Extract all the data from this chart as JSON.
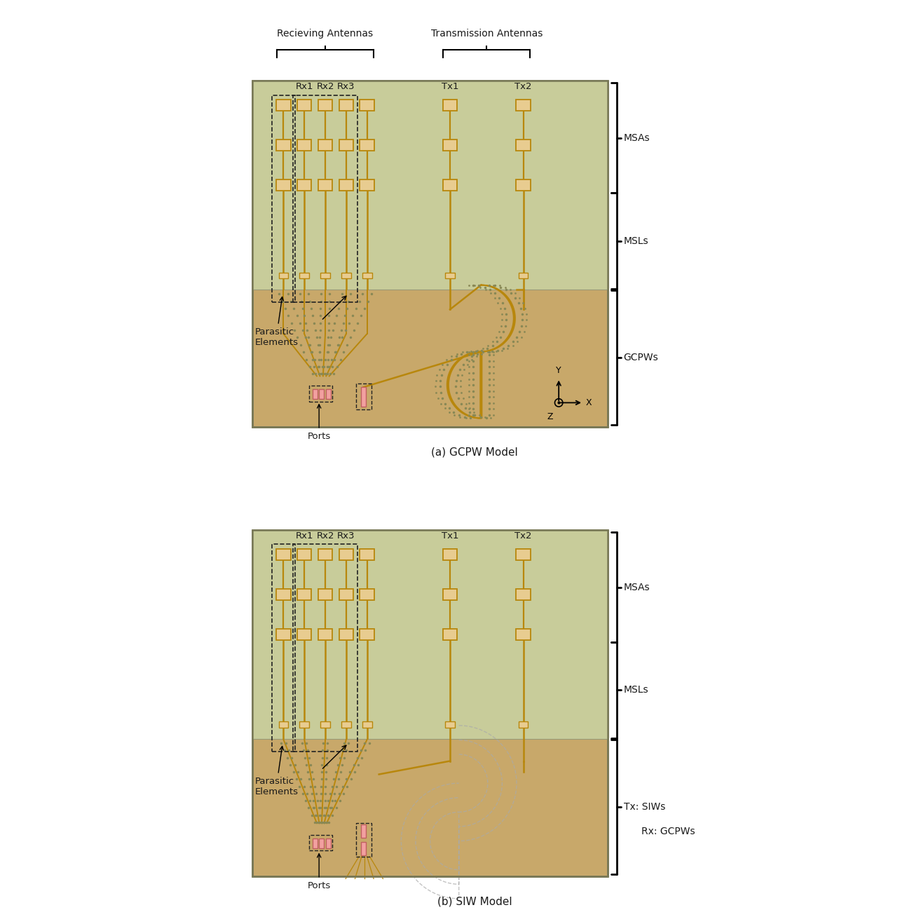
{
  "fig_width": 12.84,
  "fig_height": 13.08,
  "bg_color": "#ffffff",
  "board_green": "#c8cc9a",
  "board_tan": "#c8a86a",
  "copper_color": "#b8870c",
  "copper_fill": "#ddb870",
  "copper_light": "#e8cc90",
  "port_fill": "#f2a0a0",
  "port_stroke": "#c06060",
  "dot_color": "#888855",
  "dot_color2": "#aaaaaa",
  "text_color": "#1a1a1a",
  "title_a": "(a) GCPW Model",
  "title_b": "(b) SIW Model",
  "label_receiving": "Recieving Antennas",
  "label_transmission": "Transmission Antennas",
  "rx_labels": [
    "Rx1",
    "Rx2",
    "Rx3"
  ],
  "tx_labels": [
    "Tx1",
    "Tx2"
  ],
  "msa_label": "MSAs",
  "msl_label": "MSLs",
  "gcpw_label": "GCPWs",
  "siw_label": "Tx: SIWs",
  "rx_gcpw_label": "Rx: GCPWs",
  "parasitic_label": "Parasitic\nElements",
  "ports_label": "Ports",
  "x_label": "X",
  "y_label": "Y",
  "z_label": "Z"
}
